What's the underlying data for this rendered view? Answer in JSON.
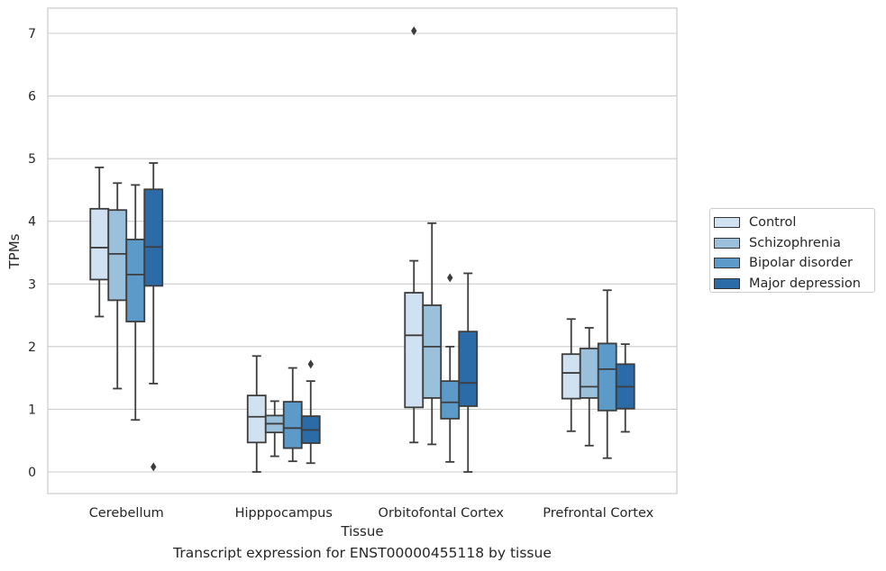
{
  "chart_data": {
    "type": "box",
    "title": "Transcript expression for ENST00000455118 by tissue",
    "xlabel": "Tissue",
    "ylabel": "TPMs",
    "ylim": [
      -0.35,
      7.4
    ],
    "yticks": [
      0,
      1,
      2,
      3,
      4,
      5,
      6,
      7
    ],
    "grid": "horizontal",
    "legend_position": "right",
    "categories": [
      "Cerebellum",
      "Hipppocampus",
      "Orbitofontal Cortex",
      "Prefrontal Cortex"
    ],
    "series": [
      {
        "name": "Control",
        "color": "#d0e1f2",
        "boxes": [
          {
            "whisker_low": 2.48,
            "q1": 3.07,
            "median": 3.58,
            "q3": 4.2,
            "whisker_high": 4.86,
            "outliers": []
          },
          {
            "whisker_low": 0.0,
            "q1": 0.47,
            "median": 0.88,
            "q3": 1.22,
            "whisker_high": 1.85,
            "outliers": []
          },
          {
            "whisker_low": 0.47,
            "q1": 1.03,
            "median": 2.18,
            "q3": 2.86,
            "whisker_high": 3.37,
            "outliers": [
              7.04
            ]
          },
          {
            "whisker_low": 0.65,
            "q1": 1.17,
            "median": 1.58,
            "q3": 1.88,
            "whisker_high": 2.44,
            "outliers": []
          }
        ]
      },
      {
        "name": "Schizophrenia",
        "color": "#9ac0db",
        "boxes": [
          {
            "whisker_low": 1.33,
            "q1": 2.74,
            "median": 3.48,
            "q3": 4.18,
            "whisker_high": 4.61,
            "outliers": []
          },
          {
            "whisker_low": 0.25,
            "q1": 0.63,
            "median": 0.77,
            "q3": 0.9,
            "whisker_high": 1.13,
            "outliers": []
          },
          {
            "whisker_low": 0.44,
            "q1": 1.18,
            "median": 2.0,
            "q3": 2.66,
            "whisker_high": 3.97,
            "outliers": []
          },
          {
            "whisker_low": 0.42,
            "q1": 1.18,
            "median": 1.36,
            "q3": 1.97,
            "whisker_high": 2.3,
            "outliers": []
          }
        ]
      },
      {
        "name": "Bipolar disorder",
        "color": "#5b9ac9",
        "boxes": [
          {
            "whisker_low": 0.83,
            "q1": 2.4,
            "median": 3.15,
            "q3": 3.71,
            "whisker_high": 4.58,
            "outliers": []
          },
          {
            "whisker_low": 0.17,
            "q1": 0.38,
            "median": 0.7,
            "q3": 1.12,
            "whisker_high": 1.66,
            "outliers": []
          },
          {
            "whisker_low": 0.16,
            "q1": 0.85,
            "median": 1.11,
            "q3": 1.45,
            "whisker_high": 2.0,
            "outliers": [
              3.1
            ]
          },
          {
            "whisker_low": 0.22,
            "q1": 0.98,
            "median": 1.64,
            "q3": 2.05,
            "whisker_high": 2.9,
            "outliers": []
          }
        ]
      },
      {
        "name": "Major depression",
        "color": "#2b6ca8",
        "boxes": [
          {
            "whisker_low": 1.41,
            "q1": 2.97,
            "median": 3.59,
            "q3": 4.51,
            "whisker_high": 4.93,
            "outliers": [
              0.08
            ]
          },
          {
            "whisker_low": 0.14,
            "q1": 0.46,
            "median": 0.67,
            "q3": 0.89,
            "whisker_high": 1.45,
            "outliers": [
              1.72
            ]
          },
          {
            "whisker_low": 0.0,
            "q1": 1.05,
            "median": 1.42,
            "q3": 2.24,
            "whisker_high": 3.17,
            "outliers": []
          },
          {
            "whisker_low": 0.64,
            "q1": 1.01,
            "median": 1.36,
            "q3": 1.72,
            "whisker_high": 2.04,
            "outliers": []
          }
        ]
      }
    ]
  }
}
